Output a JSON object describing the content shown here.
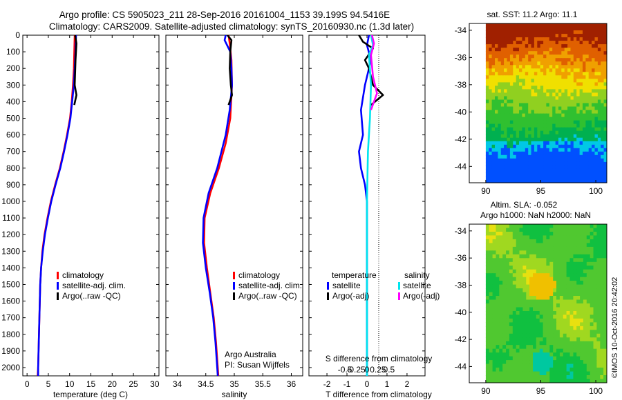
{
  "header": {
    "line1": "Argo profile: CS 5905023_211 28-Sep-2016 20161004_1153 39.199S 94.5416E",
    "line2": "Climatology: CARS2009. Satellite-adjusted climatology: synTS_20160930.nc (1.3d later)"
  },
  "colors": {
    "climatology": "#ff0000",
    "satellite": "#0000ff",
    "argo": "#000000",
    "sal_satellite": "#00e5ee",
    "sal_argo": "#ff00ff"
  },
  "chart_data": [
    {
      "type": "line",
      "id": "temperature",
      "xlabel": "temperature (deg C)",
      "xlim": [
        -1,
        31
      ],
      "xticks": [
        0,
        5,
        10,
        15,
        20,
        25,
        30
      ],
      "ylim": [
        0,
        2050
      ],
      "yticks": [
        0,
        100,
        200,
        300,
        400,
        500,
        600,
        700,
        800,
        900,
        1000,
        1100,
        1200,
        1300,
        1400,
        1500,
        1600,
        1700,
        1800,
        1900,
        2000
      ],
      "legend": [
        "climatology",
        "satellite-adj. clim.",
        "Argo(..raw -QC)"
      ],
      "series": [
        {
          "name": "climatology",
          "color": "#ff0000",
          "points": [
            [
              11.2,
              0
            ],
            [
              11.1,
              100
            ],
            [
              11.0,
              200
            ],
            [
              10.8,
              300
            ],
            [
              10.5,
              400
            ],
            [
              10.1,
              500
            ],
            [
              9.4,
              600
            ],
            [
              8.6,
              700
            ],
            [
              7.7,
              800
            ],
            [
              6.6,
              900
            ],
            [
              5.6,
              1000
            ],
            [
              4.8,
              1100
            ],
            [
              4.1,
              1200
            ],
            [
              3.6,
              1300
            ],
            [
              3.3,
              1400
            ],
            [
              3.1,
              1500
            ],
            [
              3.0,
              1600
            ],
            [
              2.9,
              1700
            ],
            [
              2.8,
              1800
            ],
            [
              2.7,
              1900
            ],
            [
              2.6,
              2000
            ],
            [
              2.5,
              2050
            ]
          ]
        },
        {
          "name": "satellite-adj. clim.",
          "color": "#0000ff",
          "points": [
            [
              11.5,
              0
            ],
            [
              11.4,
              100
            ],
            [
              11.2,
              200
            ],
            [
              11.0,
              300
            ],
            [
              10.6,
              400
            ],
            [
              10.2,
              500
            ],
            [
              9.5,
              600
            ],
            [
              8.7,
              700
            ],
            [
              7.8,
              800
            ],
            [
              6.7,
              900
            ],
            [
              5.7,
              1000
            ],
            [
              4.9,
              1100
            ],
            [
              4.2,
              1200
            ],
            [
              3.7,
              1300
            ],
            [
              3.3,
              1400
            ],
            [
              3.1,
              1500
            ],
            [
              3.0,
              1600
            ],
            [
              2.9,
              1700
            ],
            [
              2.8,
              1800
            ],
            [
              2.7,
              1900
            ],
            [
              2.6,
              2000
            ],
            [
              2.6,
              2050
            ]
          ]
        },
        {
          "name": "Argo(..raw -QC)",
          "color": "#000000",
          "points": [
            [
              11.3,
              0
            ],
            [
              11.6,
              50
            ],
            [
              11.4,
              150
            ],
            [
              11.2,
              300
            ],
            [
              11.6,
              360
            ],
            [
              11.1,
              420
            ]
          ]
        }
      ]
    },
    {
      "type": "line",
      "id": "salinity",
      "xlabel": "salinity",
      "xlim": [
        33.8,
        36.2
      ],
      "xticks": [
        34,
        34.5,
        35,
        35.5,
        36
      ],
      "ylim": [
        0,
        2050
      ],
      "legend": [
        "climatology",
        "satellite-adj. clim.",
        "Argo(..raw -QC)"
      ],
      "annotation": [
        "Argo Australia",
        "PI: Susan Wijffels"
      ],
      "series": [
        {
          "name": "climatology",
          "color": "#ff0000",
          "points": [
            [
              34.9,
              0
            ],
            [
              34.92,
              50
            ],
            [
              34.95,
              150
            ],
            [
              34.96,
              300
            ],
            [
              34.93,
              500
            ],
            [
              34.85,
              650
            ],
            [
              34.73,
              800
            ],
            [
              34.58,
              950
            ],
            [
              34.48,
              1100
            ],
            [
              34.47,
              1250
            ],
            [
              34.52,
              1400
            ],
            [
              34.58,
              1550
            ],
            [
              34.64,
              1700
            ],
            [
              34.68,
              1850
            ],
            [
              34.71,
              2000
            ],
            [
              34.72,
              2050
            ]
          ]
        },
        {
          "name": "satellite-adj. clim.",
          "color": "#0000ff",
          "points": [
            [
              34.85,
              0
            ],
            [
              34.83,
              30
            ],
            [
              34.93,
              100
            ],
            [
              34.95,
              200
            ],
            [
              34.96,
              300
            ],
            [
              34.92,
              450
            ],
            [
              34.85,
              600
            ],
            [
              34.7,
              800
            ],
            [
              34.55,
              950
            ],
            [
              34.46,
              1100
            ],
            [
              34.45,
              1250
            ],
            [
              34.5,
              1400
            ],
            [
              34.57,
              1550
            ],
            [
              34.63,
              1700
            ],
            [
              34.67,
              1850
            ],
            [
              34.7,
              2000
            ],
            [
              34.71,
              2050
            ]
          ]
        },
        {
          "name": "Argo(..raw -QC)",
          "color": "#000000",
          "points": [
            [
              34.88,
              0
            ],
            [
              34.95,
              30
            ],
            [
              34.93,
              100
            ],
            [
              34.92,
              200
            ],
            [
              34.94,
              300
            ],
            [
              34.96,
              360
            ],
            [
              34.9,
              420
            ]
          ]
        }
      ]
    },
    {
      "type": "line",
      "id": "difference",
      "xlabel": "T difference from climatology",
      "xlabel_top": "S difference from climatology",
      "xlim": [
        -2.9,
        2.9
      ],
      "xticks": [
        -2,
        -1,
        0,
        1,
        2
      ],
      "xticks_top_labels": [
        "-0.5",
        "-0.25",
        "0",
        "0.25",
        "0.5"
      ],
      "ylim": [
        0,
        2050
      ],
      "legend_temperature_title": "temperature",
      "legend_salinity_title": "salinity",
      "legend": [
        "satellite",
        "Argo(-adj)",
        "satellite",
        "Argo(-adj)"
      ],
      "series": [
        {
          "name": "temperature satellite",
          "color": "#0000ff",
          "points": [
            [
              0.1,
              0
            ],
            [
              0.0,
              60
            ],
            [
              0.2,
              150
            ],
            [
              -0.1,
              300
            ],
            [
              -0.3,
              450
            ],
            [
              -0.2,
              600
            ],
            [
              -0.4,
              700
            ],
            [
              -0.3,
              800
            ],
            [
              -0.1,
              900
            ],
            [
              0.0,
              1000
            ],
            [
              0.0,
              1200
            ],
            [
              0.0,
              2050
            ]
          ]
        },
        {
          "name": "temperature Argo(-adj)",
          "color": "#000000",
          "points": [
            [
              -0.4,
              0
            ],
            [
              -0.2,
              40
            ],
            [
              0.3,
              80
            ],
            [
              -0.1,
              150
            ],
            [
              0.1,
              200
            ],
            [
              0.3,
              300
            ],
            [
              0.8,
              360
            ],
            [
              0.2,
              420
            ]
          ]
        },
        {
          "name": "salinity satellite",
          "color": "#00e5ee",
          "points": [
            [
              0.2,
              0
            ],
            [
              0.3,
              60
            ],
            [
              0.1,
              120
            ],
            [
              0.2,
              300
            ],
            [
              0.15,
              500
            ],
            [
              0.05,
              700
            ],
            [
              0.0,
              1000
            ],
            [
              0.0,
              2050
            ]
          ]
        },
        {
          "name": "salinity Argo(-adj)",
          "color": "#ff00ff",
          "points": [
            [
              0.25,
              0
            ],
            [
              0.35,
              50
            ],
            [
              0.2,
              120
            ],
            [
              0.3,
              250
            ],
            [
              0.5,
              350
            ],
            [
              0.2,
              450
            ]
          ]
        }
      ]
    },
    {
      "type": "heatmap",
      "id": "sst_map",
      "title": "sat. SST: 11.2 Argo: 11.1",
      "xticks": [
        90,
        95,
        100
      ],
      "yticks": [
        -34,
        -36,
        -38,
        -40,
        -42,
        -44
      ],
      "xlim": [
        88.5,
        101
      ],
      "ylim": [
        -45.2,
        -33.5
      ]
    },
    {
      "type": "heatmap",
      "id": "sla_map",
      "title": "Altim. SLA: -0.052",
      "subtitle": "Argo h1000: NaN h2000: NaN",
      "xticks": [
        90,
        95,
        100
      ],
      "yticks": [
        -34,
        -36,
        -38,
        -40,
        -42,
        -44
      ],
      "xlim": [
        88.5,
        101
      ],
      "ylim": [
        -45.2,
        -33.5
      ]
    }
  ],
  "footer": {
    "credit": "©IMOS 10-Oct-2016 20:42:02"
  }
}
